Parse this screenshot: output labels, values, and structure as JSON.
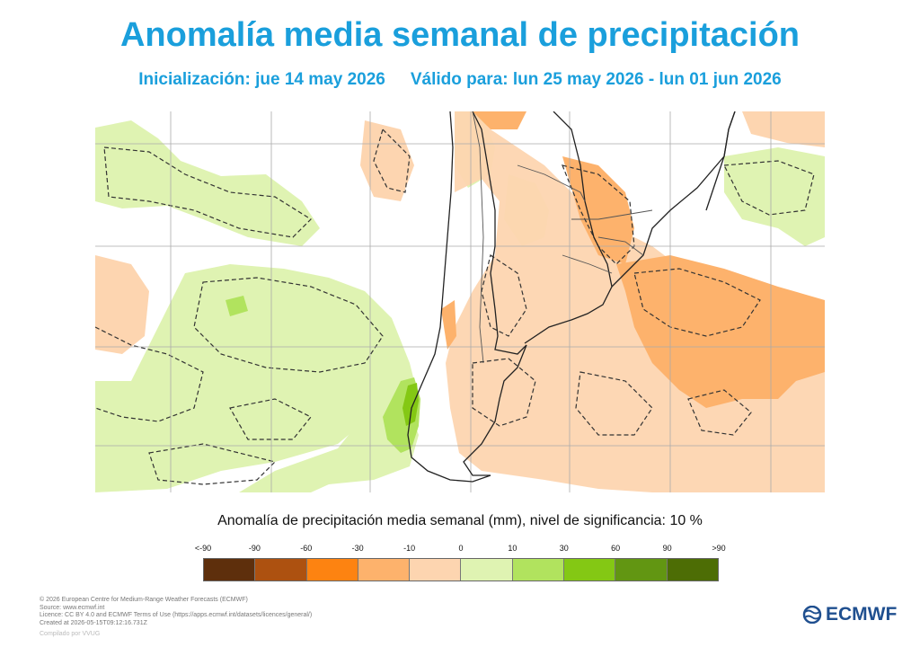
{
  "title": "Anomalía media semanal de precipitación",
  "subtitle": {
    "init": "Inicialización: jue 14 may 2026",
    "valid": "Válido para: lun 25 may 2026 - lun 01 jun 2026"
  },
  "map": {
    "region": "South America (southern cone)",
    "colors": {
      "land_border": "#222222",
      "grid": "#999999",
      "significance_contour": "#333333"
    }
  },
  "colorbar": {
    "caption": "Anomalía de precipitación media semanal (mm), nivel de significancia: 10 %",
    "labels": [
      "<-90",
      "-90",
      "-60",
      "-30",
      "-10",
      "0",
      "10",
      "30",
      "60",
      "90",
      ">90"
    ],
    "colors": [
      "#5e2f0c",
      "#ad5110",
      "#fd8311",
      "#fdb26c",
      "#fdd5b0",
      "#dff3b2",
      "#b1e35e",
      "#84c814",
      "#629612",
      "#4d6d05"
    ]
  },
  "footer": {
    "lines": [
      "© 2026 European Centre for Medium-Range Weather Forecasts (ECMWF)",
      "Source: www.ecmwf.int",
      "Licence: CC BY 4.0 and ECMWF Terms of Use (https://apps.ecmwf.int/datasets/licences/general/)",
      "Created at 2026-05-15T09:12:16.731Z"
    ],
    "compiled": "Compilado por VVUG"
  },
  "logo": {
    "text": "ECMWF",
    "icon": "ecmwf-logo-icon"
  }
}
